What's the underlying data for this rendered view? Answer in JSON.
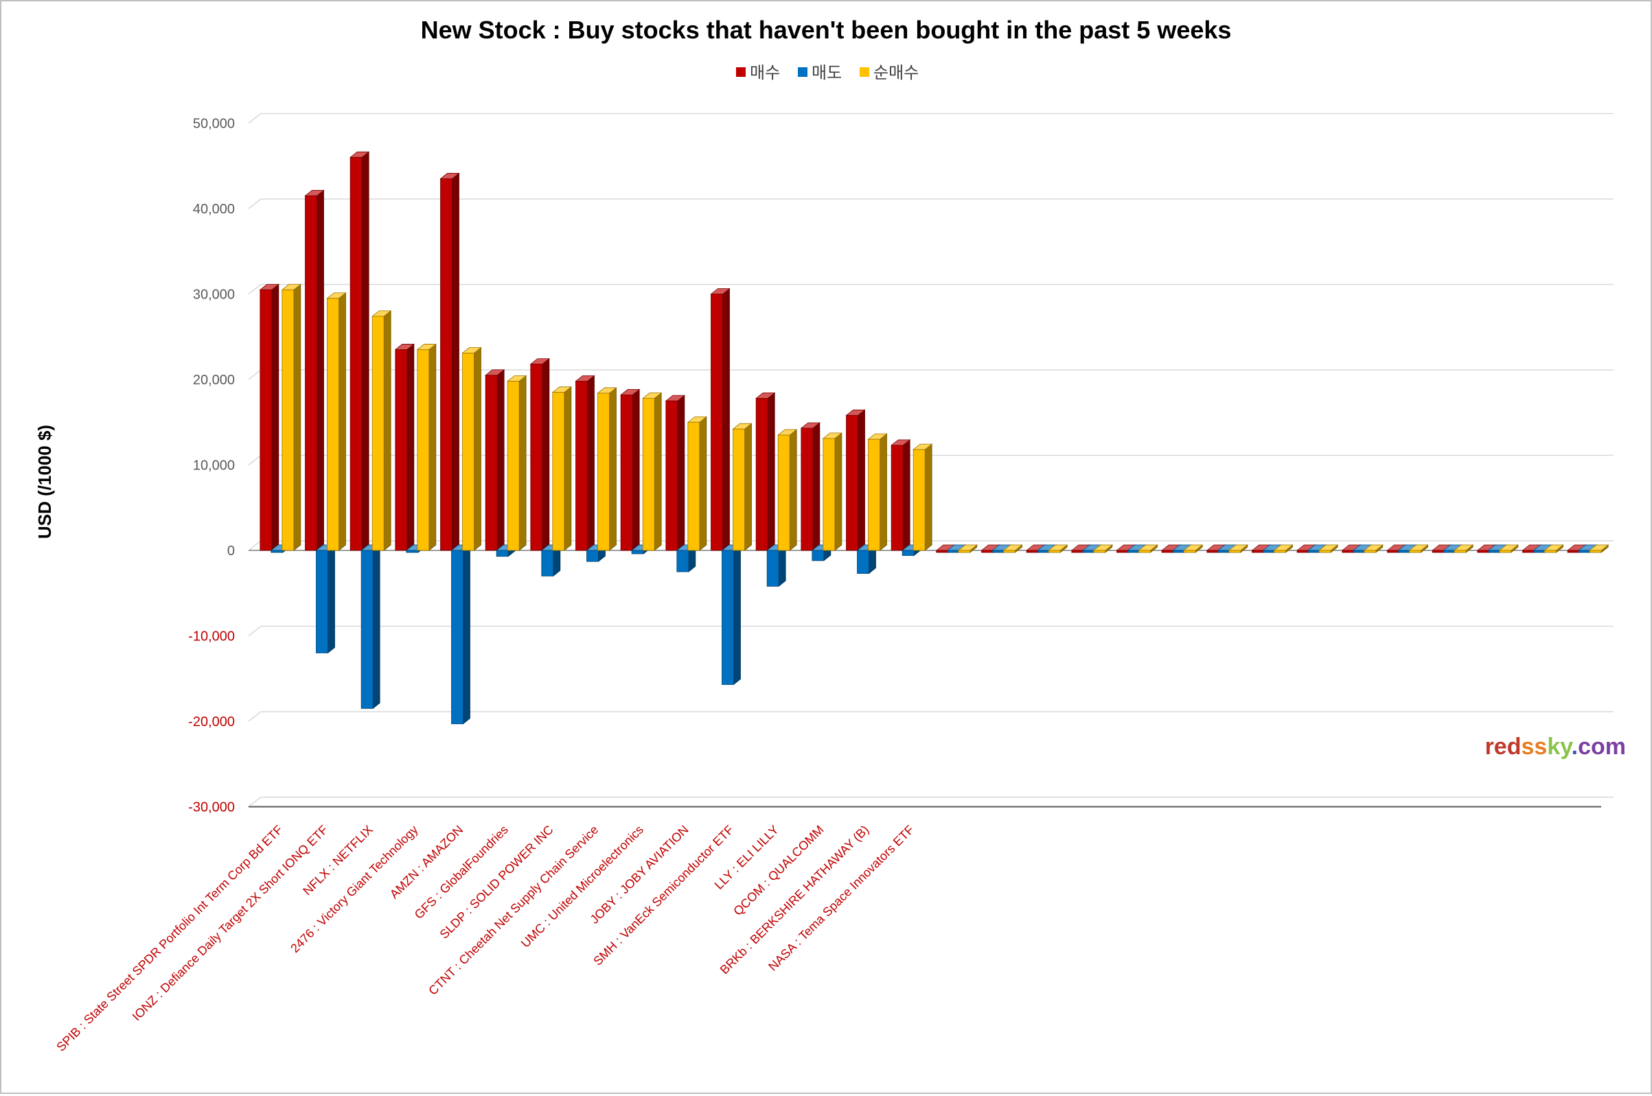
{
  "chart_data": {
    "type": "bar",
    "title": "New Stock : Buy stocks that haven't been bought in the past 5 weeks",
    "ylabel": "USD (/1000 $)",
    "xlabel": "",
    "ylim": [
      -30000,
      50000
    ],
    "yticks": [
      {
        "value": 50000,
        "label": "50,000"
      },
      {
        "value": 40000,
        "label": "40,000"
      },
      {
        "value": 30000,
        "label": "30,000"
      },
      {
        "value": 20000,
        "label": "20,000"
      },
      {
        "value": 10000,
        "label": "10,000"
      },
      {
        "value": 0,
        "label": "0"
      },
      {
        "value": -10000,
        "label": "-10,000"
      },
      {
        "value": -20000,
        "label": "-20,000"
      },
      {
        "value": -30000,
        "label": "-30,000"
      }
    ],
    "grid": true,
    "legend_position": "top",
    "categories": [
      "SPIB : State Street SPDR Portfolio Int Term Corp Bd ETF",
      "IONZ : Defiance Daily Target 2X Short IONQ ETF",
      "NFLX : NETFLIX",
      "2476 : Victory Giant Technology",
      "AMZN : AMAZON",
      "GFS : GlobalFoundries",
      "SLDP : SOLID POWER INC",
      "CTNT : Cheetah Net Supply Chain Service",
      "UMC : United Microelectronics",
      "JOBY : JOBY AVIATION",
      "SMH : VanEck Semiconductor ETF",
      "LLY : ELI LILLY",
      "QCOM : QUALCOMM",
      "BRKb : BERKSHIRE HATHAWAY (B)",
      "NASA : Tema Space Innovators ETF",
      "",
      "",
      "",
      "",
      "",
      "",
      "",
      "",
      "",
      "",
      "",
      "",
      "",
      "",
      ""
    ],
    "series": [
      {
        "name": "매수",
        "color": "#c00000",
        "values": [
          30500,
          41500,
          46000,
          23500,
          43500,
          20500,
          21800,
          19800,
          18200,
          17500,
          30000,
          17800,
          14300,
          15800,
          12300,
          0,
          0,
          0,
          0,
          0,
          0,
          0,
          0,
          0,
          0,
          0,
          0,
          0,
          0,
          0
        ]
      },
      {
        "name": "매도",
        "color": "#0070c0",
        "values": [
          0,
          -12000,
          -18500,
          0,
          -20300,
          -700,
          -3000,
          -1300,
          -400,
          -2500,
          -15700,
          -4200,
          -1200,
          -2700,
          -600,
          0,
          0,
          0,
          0,
          0,
          0,
          0,
          0,
          0,
          0,
          0,
          0,
          0,
          0,
          0
        ]
      },
      {
        "name": "순매수",
        "color": "#ffc000",
        "values": [
          30500,
          29500,
          27400,
          23500,
          23100,
          19800,
          18500,
          18400,
          17800,
          15000,
          14200,
          13500,
          13100,
          13000,
          11800,
          0,
          0,
          0,
          0,
          0,
          0,
          0,
          0,
          0,
          0,
          0,
          0,
          0,
          0,
          0
        ]
      }
    ]
  },
  "watermark": {
    "parts": [
      {
        "text": "red",
        "color": "#c0392b"
      },
      {
        "text": "ss",
        "color": "#e67e22"
      },
      {
        "text": "ky",
        "color": "#8bc34a"
      },
      {
        "text": ".",
        "color": "#3f51b5"
      },
      {
        "text": "com",
        "color": "#7b3fa0"
      }
    ]
  }
}
